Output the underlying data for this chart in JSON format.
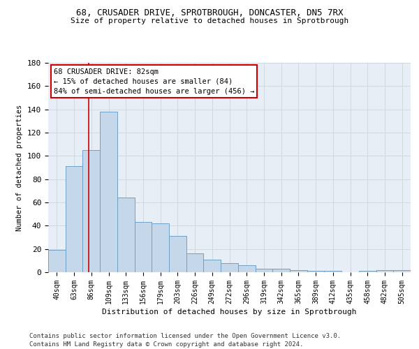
{
  "title_line1": "68, CRUSADER DRIVE, SPROTBROUGH, DONCASTER, DN5 7RX",
  "title_line2": "Size of property relative to detached houses in Sprotbrough",
  "xlabel": "Distribution of detached houses by size in Sprotbrough",
  "ylabel": "Number of detached properties",
  "categories": [
    "40sqm",
    "63sqm",
    "86sqm",
    "109sqm",
    "133sqm",
    "156sqm",
    "179sqm",
    "203sqm",
    "226sqm",
    "249sqm",
    "272sqm",
    "296sqm",
    "319sqm",
    "342sqm",
    "365sqm",
    "389sqm",
    "412sqm",
    "435sqm",
    "458sqm",
    "482sqm",
    "505sqm"
  ],
  "bar_values": [
    19,
    91,
    105,
    138,
    64,
    43,
    42,
    31,
    16,
    11,
    8,
    6,
    3,
    3,
    2,
    1,
    1,
    0,
    1,
    2,
    2
  ],
  "bar_color": "#c5d8ea",
  "bar_edge_color": "#6fa0c4",
  "red_color": "#cc0000",
  "annotation_line1": "68 CRUSADER DRIVE: 82sqm",
  "annotation_line2": "← 15% of detached houses are smaller (84)",
  "annotation_line3": "84% of semi-detached houses are larger (456) →",
  "ylim_max": 180,
  "yticks": [
    0,
    20,
    40,
    60,
    80,
    100,
    120,
    140,
    160,
    180
  ],
  "grid_color": "#d0d8e0",
  "bg_color": "#e8eef5",
  "footer_line1": "Contains HM Land Registry data © Crown copyright and database right 2024.",
  "footer_line2": "Contains public sector information licensed under the Open Government Licence v3.0."
}
